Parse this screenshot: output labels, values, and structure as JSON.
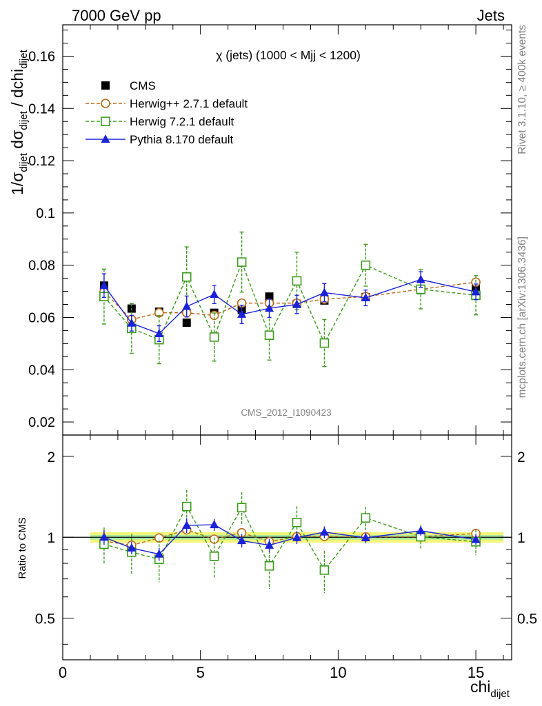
{
  "header": {
    "left": "7000 GeV pp",
    "right": "Jets"
  },
  "side": {
    "rivet": "Rivet 3.1.10, ≥ 400k events",
    "mcplots": "mcplots.cern.ch [arXiv:1306.3436]"
  },
  "chart_data": {
    "type": "scatter",
    "title": "χ (jets) (1000 < Mjj < 1200)",
    "watermark": "CMS_2012_I1090423",
    "xlabel": "chi",
    "xlabel_sub": "dijet",
    "ylabel_main": "1/σdijet dσdijet / dchidijet",
    "ylabel_ratio": "Ratio to CMS",
    "xlim": [
      0,
      16.3
    ],
    "ylim": [
      0.015,
      0.172
    ],
    "ratio_ylim": [
      0.35,
      2.4
    ],
    "ratio_scale": "log",
    "x_ticks": [
      "0",
      "5",
      "10",
      "15"
    ],
    "y_ticks": [
      "0.02",
      "0.04",
      "0.06",
      "0.08",
      "0.1",
      "0.12",
      "0.14",
      "0.16"
    ],
    "ratio_ticks": [
      "0.5",
      "1",
      "2"
    ],
    "x": [
      1.5,
      2.5,
      3.5,
      4.5,
      5.5,
      6.5,
      7.5,
      8.5,
      9.5,
      11.0,
      13.0,
      15.0
    ],
    "bin_edges": [
      1,
      2,
      3,
      4,
      5,
      6,
      7,
      8,
      9,
      10,
      12,
      14,
      16
    ],
    "band_inner": 0.02,
    "band_outer": 0.045,
    "series": [
      {
        "name": "CMS",
        "color": "#000000",
        "marker": "square-filled",
        "values": [
          0.0722,
          0.0634,
          0.0622,
          0.058,
          0.0618,
          0.063,
          0.068,
          0.0652,
          0.0665,
          0.0678,
          0.0705,
          0.0712
        ],
        "errors": [
          0.001,
          0.001,
          0.001,
          0.001,
          0.001,
          0.001,
          0.001,
          0.001,
          0.001,
          0.001,
          0.001,
          0.001
        ]
      },
      {
        "name": "Herwig++ 2.7.1 default",
        "color": "#b86a1a",
        "marker": "circle-open",
        "values": [
          0.0698,
          0.0592,
          0.0618,
          0.0618,
          0.0608,
          0.0655,
          0.0655,
          0.0655,
          0.067,
          0.068,
          0.0708,
          0.0735
        ],
        "errors": [
          0.0012,
          0.0012,
          0.0012,
          0.0012,
          0.0012,
          0.0012,
          0.0012,
          0.0012,
          0.0012,
          0.0012,
          0.0012,
          0.0012
        ]
      },
      {
        "name": "Herwig 7.2.1 default",
        "color": "#3a9a1a",
        "marker": "square-open",
        "values": [
          0.068,
          0.0558,
          0.0515,
          0.0755,
          0.0525,
          0.0812,
          0.0532,
          0.074,
          0.0502,
          0.08,
          0.0708,
          0.0685
        ],
        "errors": [
          0.0105,
          0.0095,
          0.0092,
          0.0115,
          0.0092,
          0.0115,
          0.0095,
          0.011,
          0.009,
          0.008,
          0.0075,
          0.0075
        ]
      },
      {
        "name": "Pythia 8.170 default",
        "color": "#1a22d8",
        "marker": "triangle-filled",
        "values": [
          0.0722,
          0.0578,
          0.0538,
          0.0642,
          0.0688,
          0.0612,
          0.0635,
          0.065,
          0.0695,
          0.0675,
          0.0745,
          0.0698
        ],
        "errors": [
          0.0045,
          0.003,
          0.003,
          0.004,
          0.0035,
          0.0035,
          0.0035,
          0.0035,
          0.0035,
          0.003,
          0.003,
          0.003
        ]
      }
    ],
    "legend_position": "top-left"
  }
}
